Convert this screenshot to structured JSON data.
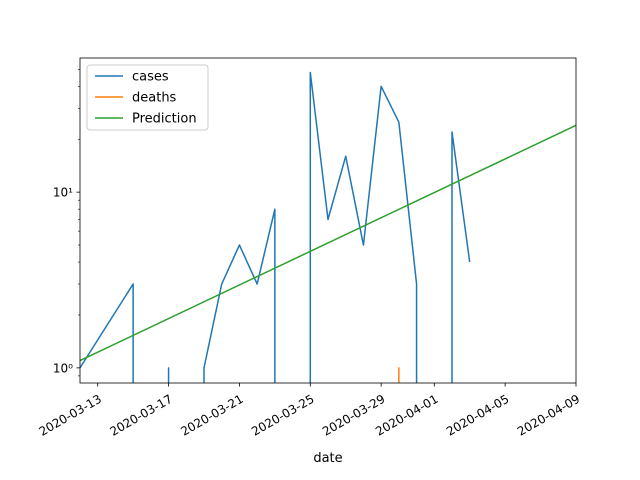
{
  "chart_data": {
    "type": "line",
    "xlabel": "date",
    "ylabel": "",
    "yscale": "log",
    "ylim": [
      0.82,
      58
    ],
    "xlim": [
      "2020-03-12",
      "2020-04-09"
    ],
    "x_ticks": [
      "2020-03-13",
      "2020-03-17",
      "2020-03-21",
      "2020-03-25",
      "2020-03-29",
      "2020-04-01",
      "2020-04-05",
      "2020-04-09"
    ],
    "y_tick_values": [
      1,
      10
    ],
    "y_tick_labels": [
      "10⁰",
      "10¹"
    ],
    "grid": false,
    "legend_position": "top-left",
    "series": [
      {
        "name": "cases",
        "color": "#1f77b4",
        "points": [
          [
            "2020-03-12",
            1
          ],
          [
            "2020-03-15",
            3
          ],
          [
            "2020-03-15",
            0
          ],
          [
            "2020-03-17",
            0
          ],
          [
            "2020-03-17",
            1
          ],
          [
            "2020-03-17",
            0
          ],
          [
            "2020-03-19",
            0
          ],
          [
            "2020-03-19",
            1
          ],
          [
            "2020-03-20",
            3
          ],
          [
            "2020-03-21",
            5
          ],
          [
            "2020-03-22",
            3
          ],
          [
            "2020-03-23",
            8
          ],
          [
            "2020-03-23",
            0
          ],
          [
            "2020-03-25",
            0
          ],
          [
            "2020-03-25",
            48
          ],
          [
            "2020-03-26",
            7
          ],
          [
            "2020-03-27",
            16
          ],
          [
            "2020-03-28",
            5
          ],
          [
            "2020-03-29",
            40
          ],
          [
            "2020-03-30",
            25
          ],
          [
            "2020-03-31",
            3
          ],
          [
            "2020-03-31",
            0
          ],
          [
            "2020-04-02",
            0
          ],
          [
            "2020-04-02",
            22
          ],
          [
            "2020-04-03",
            4
          ]
        ]
      },
      {
        "name": "deaths",
        "color": "#ff7f0e",
        "points": [
          [
            "2020-03-30",
            0
          ],
          [
            "2020-03-30",
            1
          ],
          [
            "2020-03-30",
            0
          ]
        ]
      },
      {
        "name": "Prediction",
        "color": "#2ca02c",
        "points": [
          [
            "2020-03-12",
            1.1
          ],
          [
            "2020-04-09",
            24
          ]
        ]
      }
    ]
  }
}
